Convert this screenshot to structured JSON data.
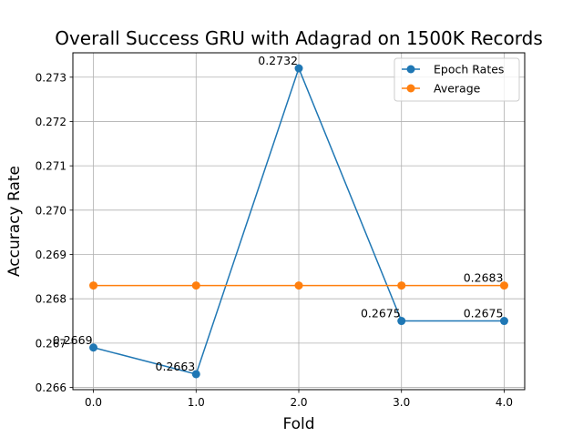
{
  "chart_data": {
    "type": "line",
    "title": "Overall Success GRU with Adagrad on 1500K Records",
    "xlabel": "Fold",
    "ylabel": "Accuracy Rate",
    "x": [
      0.0,
      1.0,
      2.0,
      3.0,
      4.0
    ],
    "xlim": [
      -0.2,
      4.2
    ],
    "ylim": [
      0.26595,
      0.27355
    ],
    "xticks": [
      "0.0",
      "1.0",
      "2.0",
      "3.0",
      "4.0"
    ],
    "yticks": [
      "0.266",
      "0.267",
      "0.268",
      "0.269",
      "0.270",
      "0.271",
      "0.272",
      "0.273"
    ],
    "grid": true,
    "legend_position": "top-right",
    "series": [
      {
        "name": "Epoch Rates",
        "color": "#1f77b4",
        "values": [
          0.2669,
          0.2663,
          0.2732,
          0.2675,
          0.2675
        ],
        "labels": [
          "0.2669",
          "0.2663",
          "0.2732",
          "0.2675",
          "0.2675"
        ]
      },
      {
        "name": "Average",
        "color": "#ff7f0e",
        "values": [
          0.2683,
          0.2683,
          0.2683,
          0.2683,
          0.2683
        ],
        "labels": [
          "0.2683"
        ]
      }
    ]
  }
}
